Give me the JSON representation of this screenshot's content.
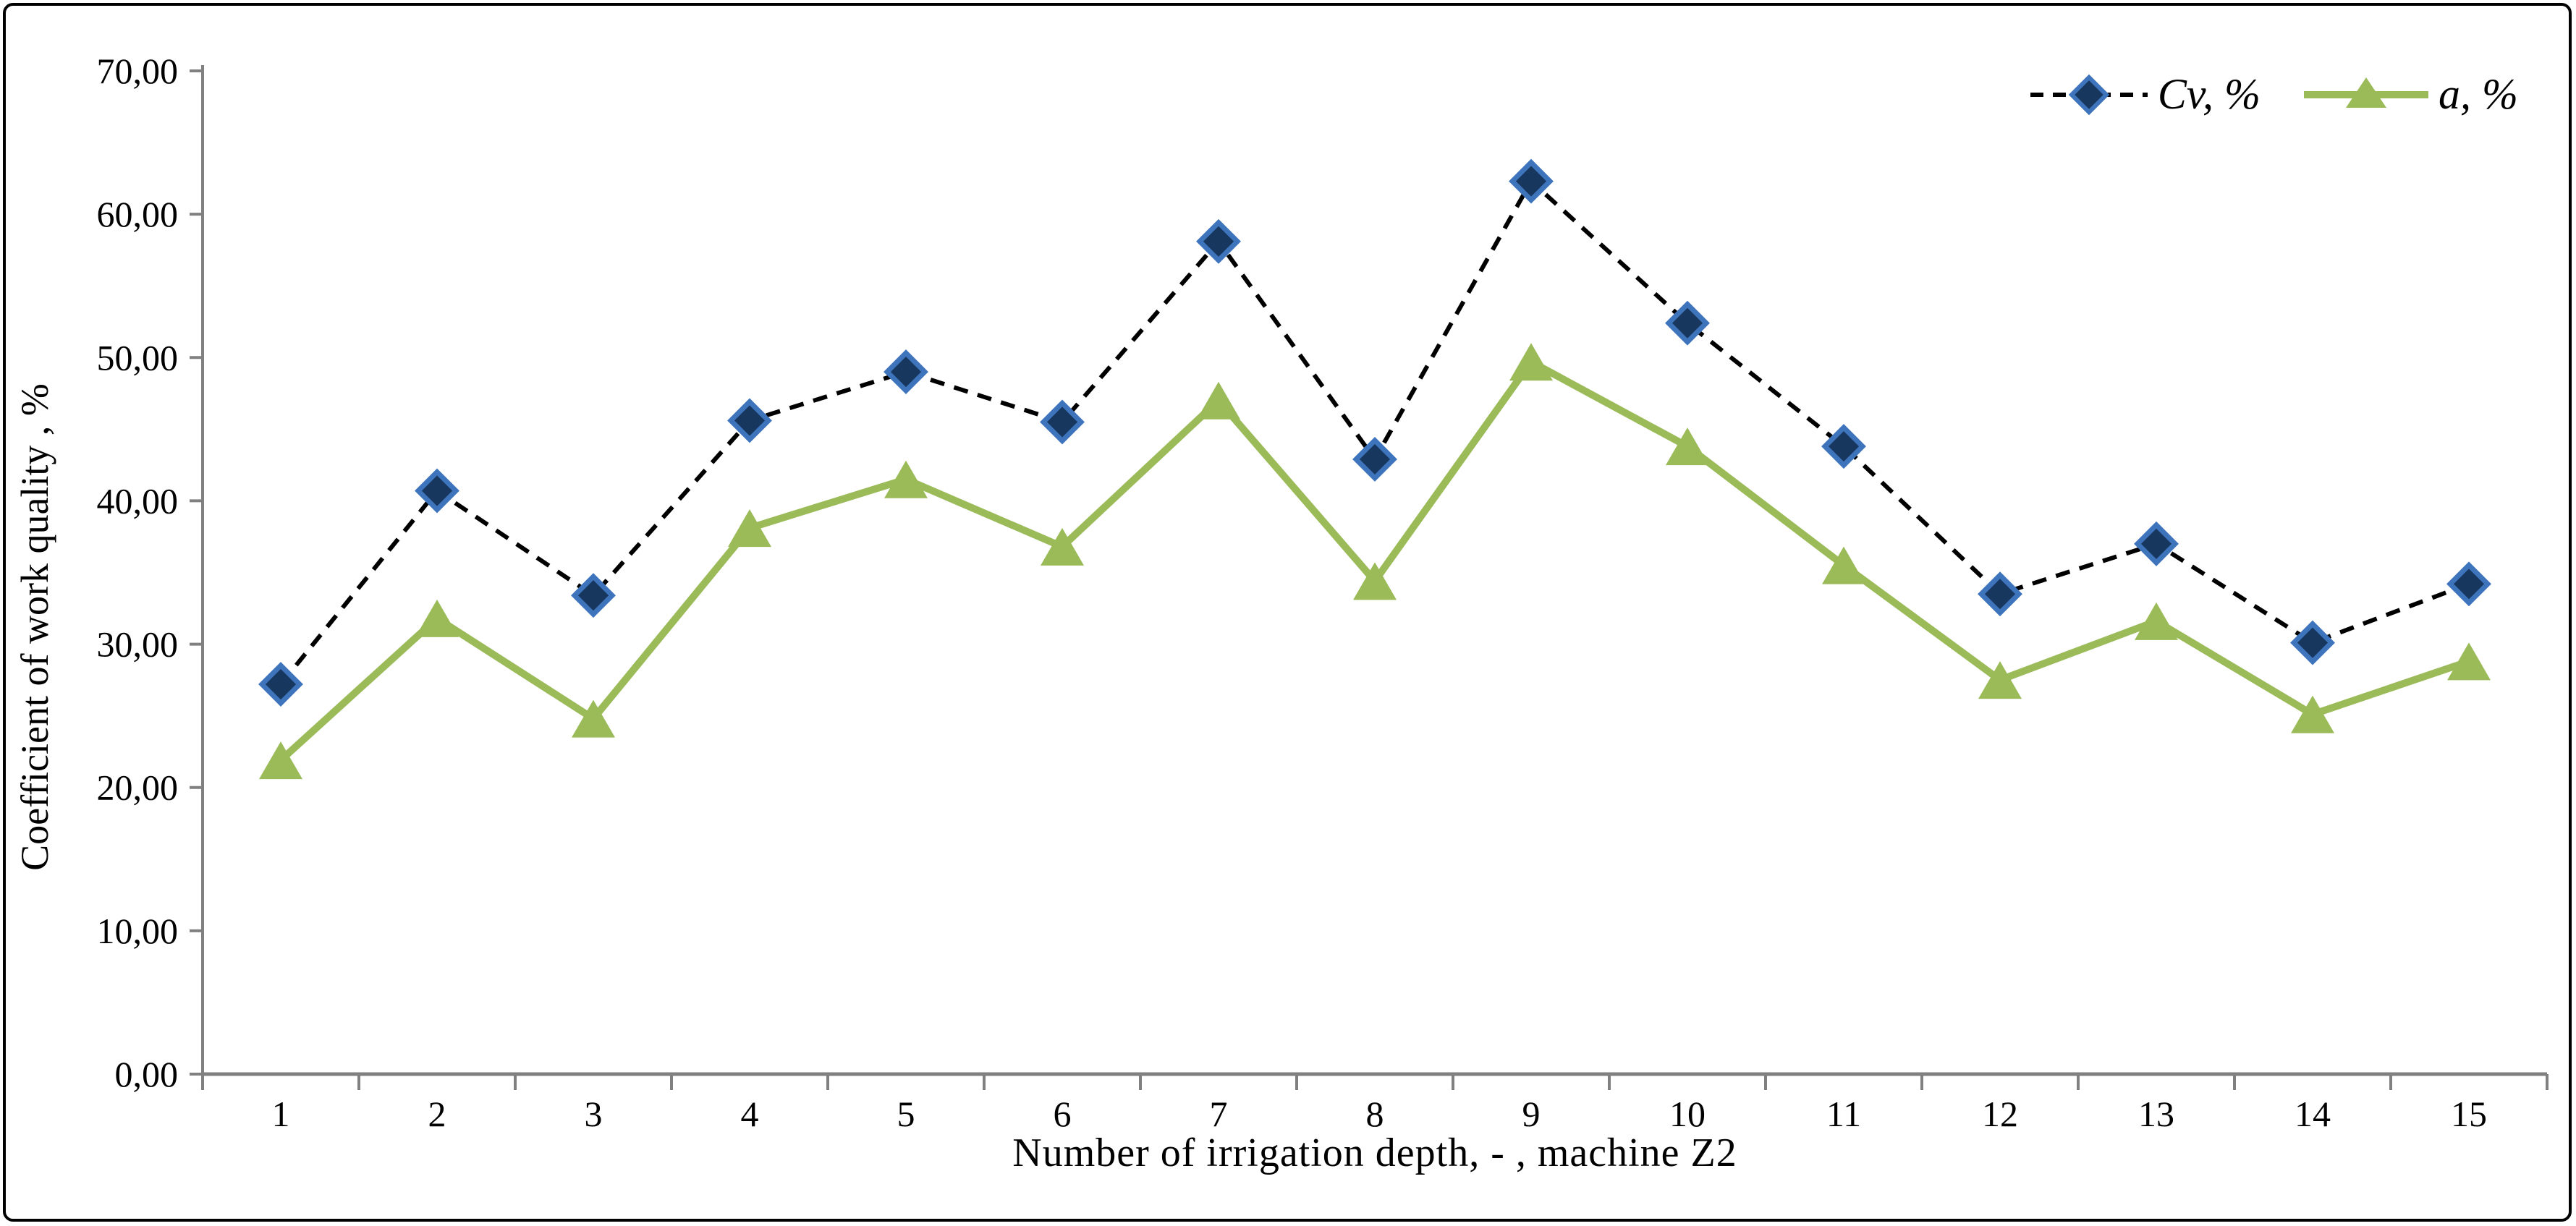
{
  "chart_data": {
    "type": "line",
    "title": "",
    "xlabel": "Number of irrigation depth, - ,  machine Z2",
    "ylabel": "Coefficient of work quality , %",
    "categories": [
      "1",
      "2",
      "3",
      "4",
      "5",
      "6",
      "7",
      "8",
      "9",
      "10",
      "11",
      "12",
      "13",
      "14",
      "15"
    ],
    "series": [
      {
        "name": "Cv, %",
        "values": [
          27.2,
          40.7,
          33.4,
          45.6,
          49.0,
          45.5,
          58.1,
          42.9,
          62.3,
          52.4,
          43.8,
          33.5,
          37.0,
          30.1,
          34.2
        ],
        "line_style": "dashed",
        "line_color": "#000000",
        "marker": "diamond",
        "marker_fill": "#17375E",
        "marker_edge": "#3E74BC"
      },
      {
        "name": "a, %",
        "values": [
          21.9,
          31.8,
          24.8,
          38.1,
          41.5,
          36.8,
          47.0,
          34.4,
          49.7,
          43.8,
          35.5,
          27.5,
          31.6,
          25.1,
          28.8
        ],
        "line_style": "solid",
        "line_color": "#9BBB59",
        "marker": "triangle",
        "marker_fill": "#9BBB59",
        "marker_edge": "#9BBB59"
      }
    ],
    "ylim": [
      0,
      70
    ],
    "ytick_step": 10,
    "ytick_labels": [
      "0,00",
      "10,00",
      "20,00",
      "30,00",
      "40,00",
      "50,00",
      "60,00",
      "70,00"
    ],
    "legend_position": "top-right",
    "grid": "off",
    "axis_color": "#808080",
    "text_color": "#000000"
  }
}
